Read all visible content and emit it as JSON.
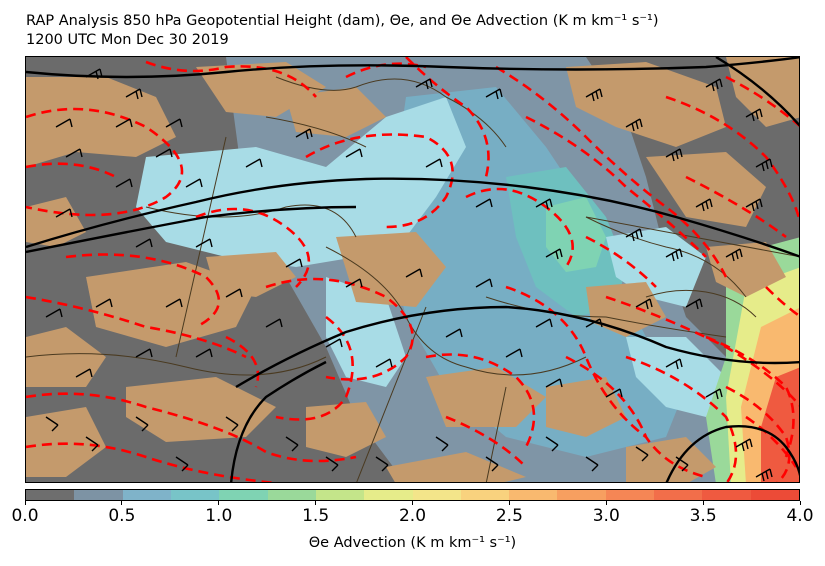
{
  "header": {
    "title_line1": "RAP Analysis 850 hPa Geopotential Height (dam), Θe, and Θe Advection (K m km⁻¹ s⁻¹)",
    "title_line2": "1200 UTC Mon Dec 30 2019"
  },
  "map": {
    "fields": [
      "850 hPa geopotential height contours (black)",
      "theta-e contours (red dashed)",
      "theta-e advection fill",
      "wind barbs"
    ],
    "colors": {
      "height_contour": "#000000",
      "thetae_contour": "#ff0000",
      "land_tan": "#c49a6c",
      "negative_gray": "#6b6b6b",
      "light_cyan": "#a8dce6",
      "coastline": "#4a3a20"
    }
  },
  "colorbar": {
    "label": "Θe Advection (K m km⁻¹ s⁻¹)",
    "ticks": [
      "0.0",
      "0.5",
      "1.0",
      "1.5",
      "2.0",
      "2.5",
      "3.0",
      "3.5",
      "4.0"
    ],
    "range": [
      0.0,
      4.0
    ],
    "colors": [
      "#6e6e6e",
      "#7d93a4",
      "#7fb3c9",
      "#78c4c8",
      "#7fd3b3",
      "#9ad99a",
      "#c4e58a",
      "#e6ec8a",
      "#f3e58a",
      "#f9d27e",
      "#f9b96f",
      "#f79f60",
      "#f58655",
      "#f26e4a",
      "#ef5a40",
      "#ec4b37"
    ]
  }
}
